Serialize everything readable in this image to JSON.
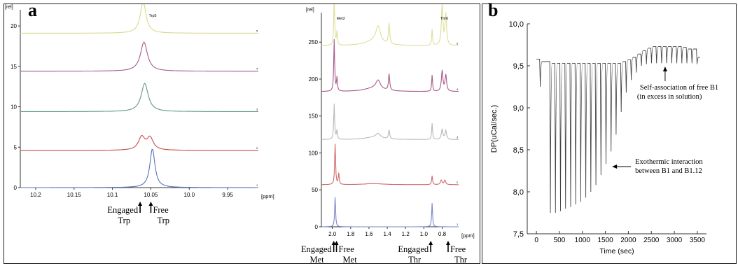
{
  "panel_a": {
    "letter": "a"
  },
  "panel_b": {
    "letter": "b"
  },
  "chart_data": [
    {
      "type": "line",
      "panel": "a-left",
      "ylabel": "[rel]",
      "xlabel": "[ppm]",
      "peak_label": "Trp5",
      "x_ticks": [
        "10.2",
        "10.15",
        "10.1",
        "10.05",
        "10.0",
        "9.95"
      ],
      "y_ticks": [
        "0",
        "5",
        "10",
        "15",
        "20"
      ],
      "xlim": [
        10.22,
        9.91
      ],
      "ylim": [
        0,
        22
      ],
      "series": [
        {
          "label": "1",
          "color": "#5a73b8",
          "offset": 0,
          "peaks": [
            {
              "x": 10.048,
              "h": 4.8,
              "w": 0.004
            }
          ]
        },
        {
          "label": "2",
          "color": "#c84b4b",
          "offset": 4.6,
          "peaks": [
            {
              "x": 10.062,
              "h": 1.6,
              "w": 0.005
            },
            {
              "x": 10.051,
              "h": 1.5,
              "w": 0.005
            }
          ]
        },
        {
          "label": "3",
          "color": "#5f9a7d",
          "offset": 9.4,
          "peaks": [
            {
              "x": 10.058,
              "h": 3.5,
              "w": 0.0055
            }
          ]
        },
        {
          "label": "4",
          "color": "#a45a8e",
          "offset": 14.4,
          "peaks": [
            {
              "x": 10.059,
              "h": 3.6,
              "w": 0.0055
            }
          ]
        },
        {
          "label": "5",
          "color": "#d9d98a",
          "offset": 19.1,
          "peaks": [
            {
              "x": 10.06,
              "h": 3.9,
              "w": 0.0045
            }
          ]
        }
      ],
      "annotations": [
        {
          "text": [
            "Engaged",
            "Trp"
          ],
          "x": 10.064
        },
        {
          "text": [
            "Free",
            "Trp"
          ],
          "x": 10.05
        }
      ]
    },
    {
      "type": "line",
      "panel": "a-right",
      "ylabel": "[rel]",
      "xlabel": "[ppm]",
      "peak_labels": [
        "Met2",
        "Thr6"
      ],
      "x_ticks": [
        "2.0",
        "1.8",
        "1.6",
        "1.4",
        "1.2",
        "1.0",
        "0.8"
      ],
      "y_ticks": [
        "0",
        "50",
        "100",
        "150",
        "200",
        "250"
      ],
      "xlim": [
        2.12,
        0.62
      ],
      "ylim": [
        0,
        290
      ],
      "series": [
        {
          "label": "1",
          "color": "#7a86c8",
          "offset": 0,
          "peaks": [
            {
              "x": 1.97,
              "h": 40,
              "w": 0.006
            },
            {
              "x": 0.91,
              "h": 32,
              "w": 0.006
            }
          ]
        },
        {
          "label": "2",
          "color": "#d06a6a",
          "offset": 57,
          "peaks": [
            {
              "x": 1.97,
              "h": 55,
              "w": 0.006
            },
            {
              "x": 1.93,
              "h": 15,
              "w": 0.006
            },
            {
              "x": 0.91,
              "h": 12,
              "w": 0.006
            },
            {
              "x": 0.81,
              "h": 6,
              "w": 0.01
            },
            {
              "x": 0.77,
              "h": 6,
              "w": 0.01
            }
          ]
        },
        {
          "label": "3",
          "color": "#b9b9b9",
          "offset": 118,
          "peaks": [
            {
              "x": 1.98,
              "h": 48,
              "w": 0.006
            },
            {
              "x": 1.95,
              "h": 12,
              "w": 0.006
            },
            {
              "x": 1.5,
              "h": 6,
              "w": 0.03
            },
            {
              "x": 1.38,
              "h": 12,
              "w": 0.008
            },
            {
              "x": 0.91,
              "h": 22,
              "w": 0.006
            },
            {
              "x": 0.8,
              "h": 14,
              "w": 0.01
            },
            {
              "x": 0.76,
              "h": 12,
              "w": 0.01
            }
          ]
        },
        {
          "label": "4",
          "color": "#a65a8c",
          "offset": 183,
          "peaks": [
            {
              "x": 1.98,
              "h": 70,
              "w": 0.006
            },
            {
              "x": 1.95,
              "h": 18,
              "w": 0.006
            },
            {
              "x": 1.5,
              "h": 12,
              "w": 0.03
            },
            {
              "x": 1.38,
              "h": 22,
              "w": 0.008
            },
            {
              "x": 0.91,
              "h": 22,
              "w": 0.006
            },
            {
              "x": 0.8,
              "h": 28,
              "w": 0.01
            },
            {
              "x": 0.76,
              "h": 22,
              "w": 0.01
            }
          ]
        },
        {
          "label": "5",
          "color": "#dede9a",
          "offset": 245,
          "peaks": [
            {
              "x": 1.98,
              "h": 65,
              "w": 0.006
            },
            {
              "x": 1.95,
              "h": 18,
              "w": 0.006
            },
            {
              "x": 1.5,
              "h": 22,
              "w": 0.03
            },
            {
              "x": 1.38,
              "h": 28,
              "w": 0.008
            },
            {
              "x": 0.91,
              "h": 22,
              "w": 0.006
            },
            {
              "x": 0.8,
              "h": 55,
              "w": 0.01
            },
            {
              "x": 0.76,
              "h": 42,
              "w": 0.01
            }
          ]
        }
      ],
      "annotations": [
        {
          "text": [
            "Engaged",
            "Met"
          ],
          "x": 1.985
        },
        {
          "text": [
            "Free",
            "Met"
          ],
          "x": 1.955
        },
        {
          "text": [
            "Engaged",
            "Thr"
          ],
          "x": 0.925
        },
        {
          "text": [
            "Free",
            "Thr"
          ],
          "x": 0.735
        }
      ]
    },
    {
      "type": "line",
      "panel": "b",
      "xlabel": "Time (sec)",
      "ylabel": "DP(uCal/sec.)",
      "xlim": [
        -200,
        3700
      ],
      "ylim": [
        7.5,
        10.0
      ],
      "x_ticks": [
        "0",
        "500",
        "1000",
        "1500",
        "2000",
        "2500",
        "3000",
        "3500"
      ],
      "y_ticks": [
        "7,5",
        "8,0",
        "8,5",
        "9,0",
        "9,5",
        "10,0"
      ],
      "baseline_start": 9.58,
      "injections": [
        {
          "t": 70,
          "min": 9.25,
          "base": 9.55
        },
        {
          "t": 290,
          "min": 7.75,
          "base": 9.53
        },
        {
          "t": 400,
          "min": 7.75,
          "base": 9.53
        },
        {
          "t": 510,
          "min": 7.77,
          "base": 9.53
        },
        {
          "t": 620,
          "min": 7.8,
          "base": 9.53
        },
        {
          "t": 730,
          "min": 7.82,
          "base": 9.53
        },
        {
          "t": 840,
          "min": 7.85,
          "base": 9.53
        },
        {
          "t": 950,
          "min": 7.88,
          "base": 9.53
        },
        {
          "t": 1060,
          "min": 7.93,
          "base": 9.53
        },
        {
          "t": 1170,
          "min": 8.0,
          "base": 9.53
        },
        {
          "t": 1280,
          "min": 8.08,
          "base": 9.53
        },
        {
          "t": 1390,
          "min": 8.2,
          "base": 9.53
        },
        {
          "t": 1500,
          "min": 8.33,
          "base": 9.53
        },
        {
          "t": 1610,
          "min": 8.48,
          "base": 9.53
        },
        {
          "t": 1720,
          "min": 8.68,
          "base": 9.53
        },
        {
          "t": 1830,
          "min": 8.95,
          "base": 9.55
        },
        {
          "t": 1940,
          "min": 9.18,
          "base": 9.57
        },
        {
          "t": 2050,
          "min": 9.33,
          "base": 9.6
        },
        {
          "t": 2160,
          "min": 9.42,
          "base": 9.64
        },
        {
          "t": 2270,
          "min": 9.5,
          "base": 9.68
        },
        {
          "t": 2380,
          "min": 9.52,
          "base": 9.71
        },
        {
          "t": 2490,
          "min": 9.53,
          "base": 9.73
        },
        {
          "t": 2600,
          "min": 9.53,
          "base": 9.73
        },
        {
          "t": 2710,
          "min": 9.53,
          "base": 9.73
        },
        {
          "t": 2820,
          "min": 9.53,
          "base": 9.73
        },
        {
          "t": 2930,
          "min": 9.53,
          "base": 9.73
        },
        {
          "t": 3040,
          "min": 9.53,
          "base": 9.73
        },
        {
          "t": 3150,
          "min": 9.53,
          "base": 9.72
        },
        {
          "t": 3260,
          "min": 9.53,
          "base": 9.7
        },
        {
          "t": 3370,
          "min": 9.53,
          "base": 9.7
        },
        {
          "t": 3480,
          "min": 9.52,
          "base": 9.6
        }
      ],
      "annotations": [
        {
          "text": [
            "Self-association of free B1",
            " (in excess in solution)"
          ],
          "arrow_to": {
            "x": 2800,
            "y": 9.5
          }
        },
        {
          "text": [
            "Exothermic interaction",
            "between B1 and B1.12"
          ],
          "arrow_to": {
            "x": 1600,
            "y": 8.3
          }
        }
      ]
    }
  ]
}
